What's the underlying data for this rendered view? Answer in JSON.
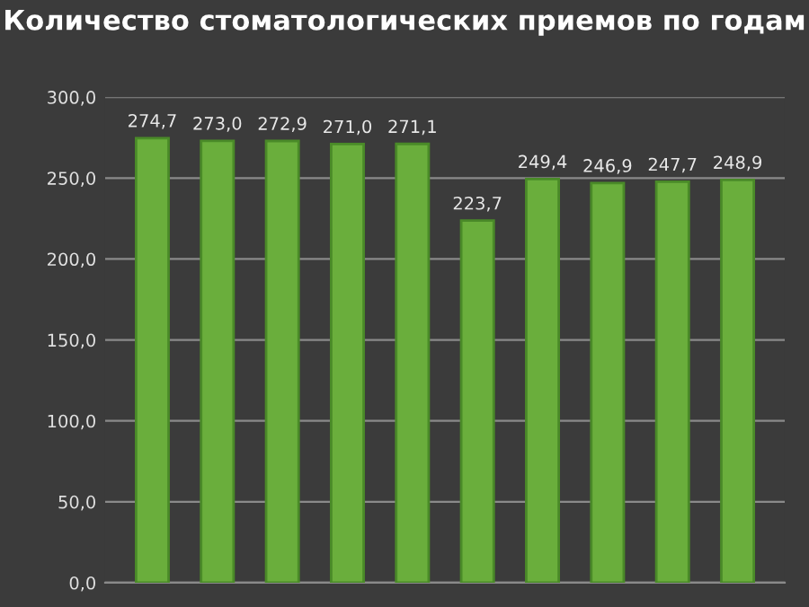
{
  "chart_data": {
    "type": "bar",
    "title": "Количество стоматологических приемов по годам",
    "categories": [
      null,
      null,
      null,
      null,
      null,
      null,
      null,
      null,
      null,
      null
    ],
    "values": [
      274.7,
      273.0,
      272.9,
      271.0,
      271.1,
      223.7,
      249.4,
      246.9,
      247.7,
      248.9
    ],
    "value_labels": [
      "274,7",
      "273,0",
      "272,9",
      "271,0",
      "271,1",
      "223,7",
      "249,4",
      "246,9",
      "247,7",
      "248,9"
    ],
    "color": "#6aae3c",
    "ylim": [
      0,
      300
    ],
    "yticks": [
      {
        "value": 0,
        "label": "0,0"
      },
      {
        "value": 50,
        "label": "50,0"
      },
      {
        "value": 100,
        "label": "100,0"
      },
      {
        "value": 150,
        "label": "150,0"
      },
      {
        "value": 200,
        "label": "200,0"
      },
      {
        "value": 250,
        "label": "250,0"
      },
      {
        "value": 300,
        "label": "300,0"
      }
    ],
    "grid": "y",
    "legend": false
  }
}
